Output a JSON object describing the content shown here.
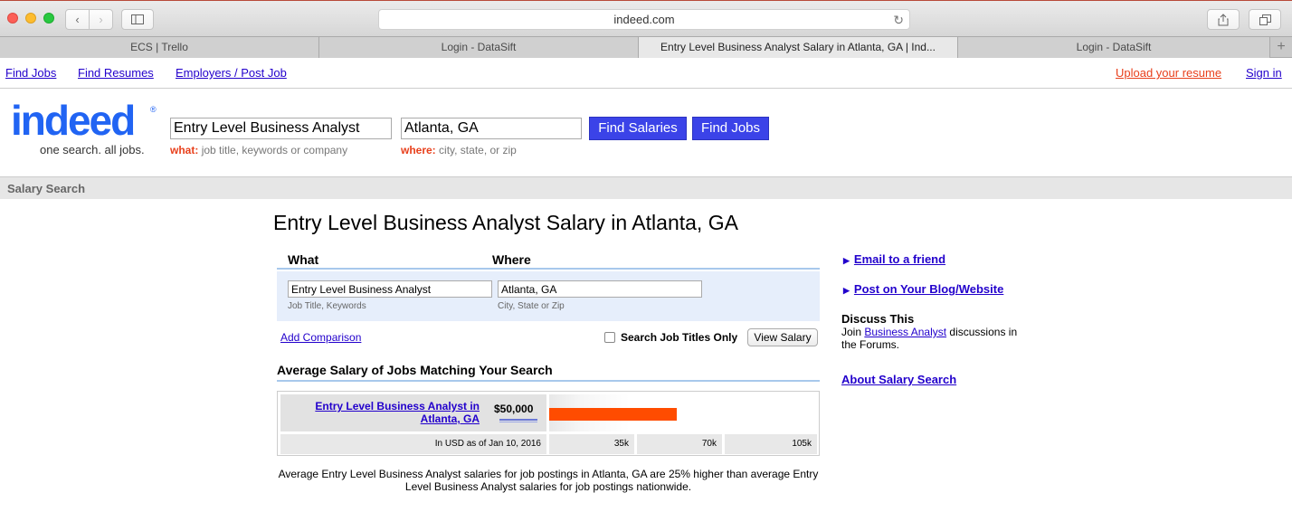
{
  "browser": {
    "address": "indeed.com",
    "tabs": [
      {
        "label": "ECS | Trello",
        "active": false
      },
      {
        "label": "Login - DataSift",
        "active": false
      },
      {
        "label": "Entry Level Business Analyst Salary in Atlanta, GA | Ind...",
        "active": true
      },
      {
        "label": "Login - DataSift",
        "active": false
      }
    ],
    "new_tab": "+"
  },
  "topnav": {
    "find_jobs": "Find Jobs",
    "find_resumes": "Find Resumes",
    "employers": "Employers / Post Job",
    "upload_resume": "Upload your resume",
    "sign_in": "Sign in"
  },
  "logo": {
    "word": "indeed",
    "reg": "®",
    "tagline": "one search. all jobs."
  },
  "search": {
    "what_value": "Entry Level Business Analyst",
    "where_value": "Atlanta, GA",
    "what_hint_label": "what:",
    "what_hint": "job title, keywords or company",
    "where_hint_label": "where:",
    "where_hint": "city, state, or zip",
    "find_salaries": "Find Salaries",
    "find_jobs": "Find Jobs"
  },
  "breadcrumb": "Salary Search",
  "page_title": "Entry Level Business Analyst Salary in Atlanta, GA",
  "form": {
    "what_label": "What",
    "where_label": "Where",
    "what_value": "Entry Level Business Analyst",
    "where_value": "Atlanta, GA",
    "what_hint": "Job Title, Keywords",
    "where_hint": "City, State or Zip",
    "add_comparison": "Add Comparison",
    "titles_only": "Search Job Titles Only",
    "view_salary": "View Salary"
  },
  "average": {
    "heading": "Average Salary of Jobs Matching Your Search",
    "job_link_line1": "Entry Level Business Analyst in",
    "job_link_line2": "Atlanta, GA",
    "salary": "$50,000",
    "salary_value": 50000,
    "axis_max": 105000,
    "date_note": "In USD as of Jan 10, 2016",
    "ticks": [
      "35k",
      "70k",
      "105k"
    ],
    "summary": "Average Entry Level Business Analyst salaries for job postings in Atlanta, GA are 25% higher than average Entry Level Business Analyst salaries for job postings nationwide."
  },
  "sidebar": {
    "email_friend": "Email to a friend",
    "post_blog": "Post on Your Blog/Website",
    "discuss_heading": "Discuss This",
    "discuss_pre": "Join ",
    "discuss_link": "Business Analyst",
    "discuss_post": " discussions in the Forums.",
    "about": "About Salary Search"
  },
  "colors": {
    "brand": "#2164f3",
    "link": "#2200cc",
    "accent_orange": "#e8401c",
    "bar": "#ff4c00",
    "button": "#3b43e8"
  }
}
